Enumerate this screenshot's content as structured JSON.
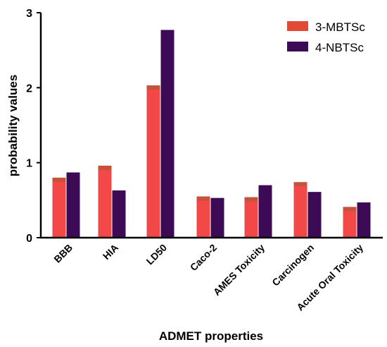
{
  "chart_data": {
    "type": "bar",
    "title": "",
    "xlabel": "ADMET properties",
    "ylabel": "probability values",
    "ylim": [
      0,
      3
    ],
    "yticks": [
      "0",
      "1",
      "2",
      "3"
    ],
    "grid": false,
    "legend_position": "top-right",
    "categories": [
      "BBB",
      "HIA",
      "LD50",
      "Caco-2",
      "AMES Toxicity",
      "Carcinogen",
      "Acute Oral Toxicity"
    ],
    "series": [
      {
        "name": "3-MBTSc",
        "color": "#f24848",
        "values": [
          0.8,
          0.96,
          2.03,
          0.55,
          0.54,
          0.74,
          0.41
        ]
      },
      {
        "name": "4-NBTSc",
        "color": "#3d0a55",
        "values": [
          0.87,
          0.63,
          2.77,
          0.53,
          0.7,
          0.61,
          0.47
        ]
      }
    ]
  }
}
